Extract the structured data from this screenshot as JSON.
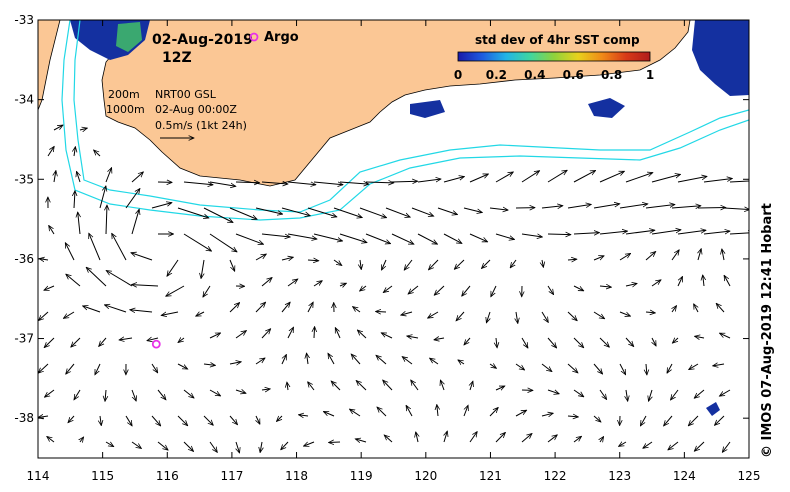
{
  "map": {
    "title_date": "02-Aug-2019",
    "title_hour": "12Z",
    "argo_label": "Argo",
    "colorbar": {
      "title": "std dev of 4hr SST comp",
      "ticks": [
        "0",
        "0.2",
        "0.4",
        "0.6",
        "0.8",
        "1"
      ],
      "colors": [
        "#1a1aa8",
        "#1e5be0",
        "#22b4e6",
        "#3fd6a0",
        "#8fd23c",
        "#e8d21c",
        "#f08a18",
        "#d83a18",
        "#b01c1c"
      ]
    },
    "contour_legend": {
      "c200": "200m",
      "c1000": "1000m"
    },
    "product": {
      "line1": "NRT00 GSL",
      "line2": "02-Aug 00:00Z",
      "line3": "0.5m/s (1kt 24h)"
    },
    "credit": "© IMOS 07-Aug-2019 12:41 Hobart",
    "axes": {
      "lon_ticks": [
        "114",
        "115",
        "116",
        "117",
        "118",
        "119",
        "120",
        "121",
        "122",
        "123",
        "124",
        "125"
      ],
      "lat_ticks": [
        "-33",
        "-34",
        "-35",
        "-36",
        "-37",
        "-38"
      ],
      "lon_range": [
        114,
        125
      ],
      "lat_range": [
        -38.5,
        -33
      ]
    },
    "colors": {
      "land": "#fbc795",
      "contour": "#22d8e6",
      "argo": "#e832e8",
      "sst_patch": "#1430a0"
    },
    "argo_float": {
      "lon": 115.83,
      "lat": -37.07
    }
  }
}
